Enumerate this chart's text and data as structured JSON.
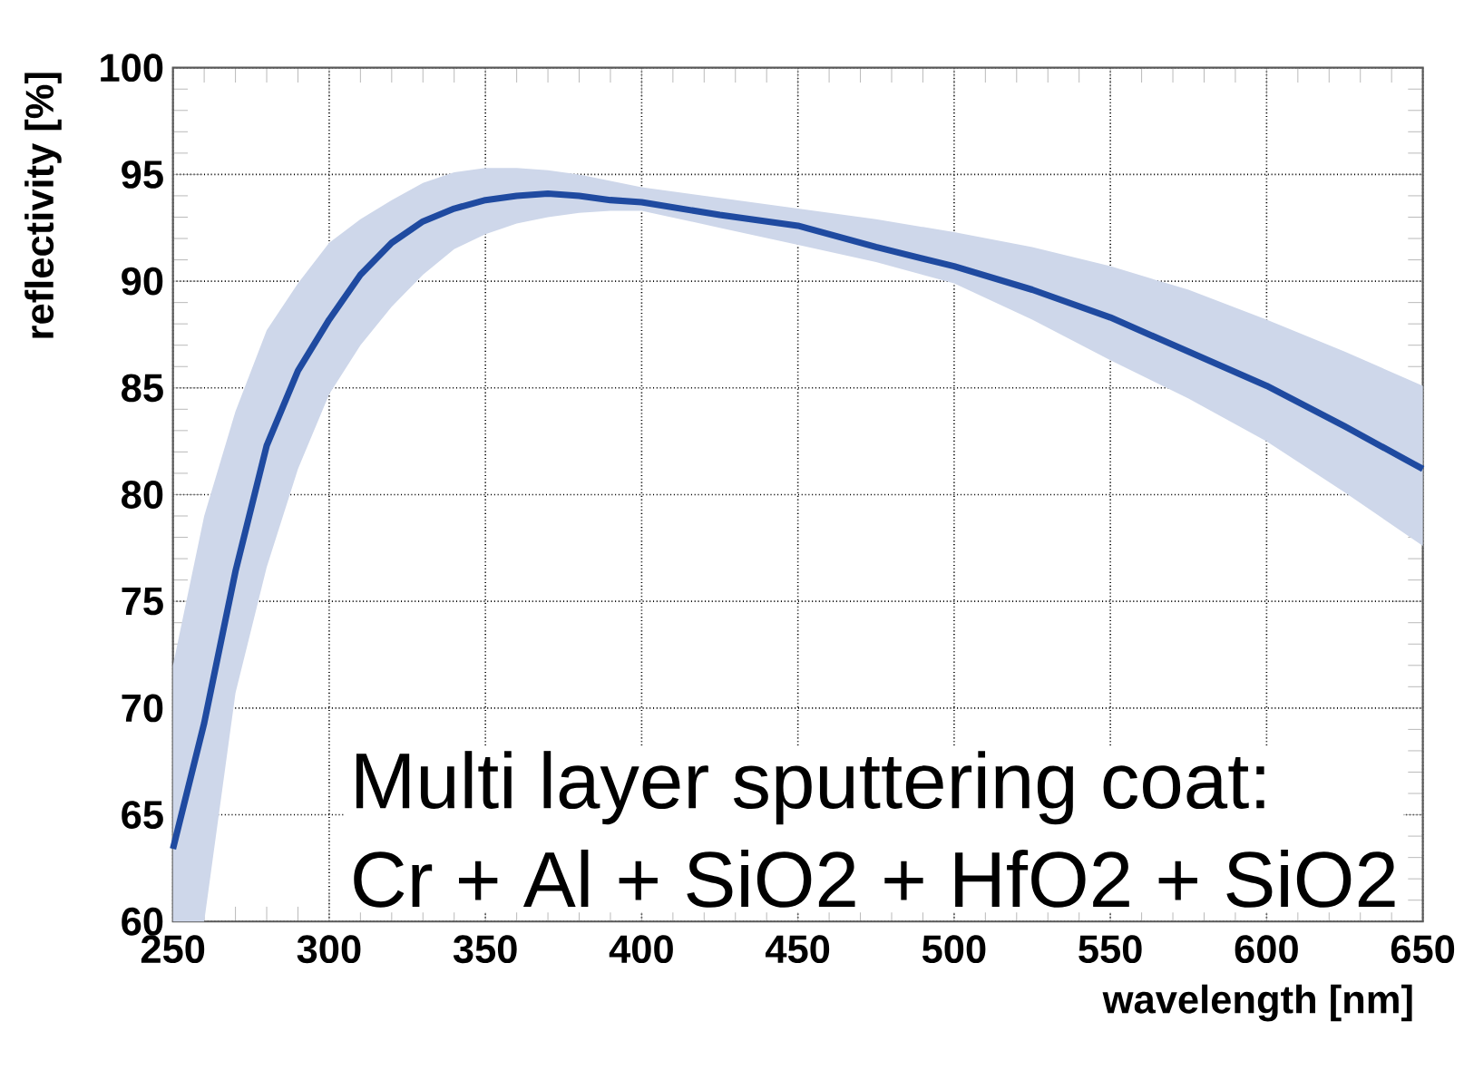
{
  "chart_data": {
    "type": "line",
    "xlabel": "wavelength [nm]",
    "ylabel": "reflectivity [%]",
    "x": [
      250,
      260,
      270,
      280,
      290,
      300,
      310,
      320,
      330,
      340,
      350,
      360,
      370,
      380,
      390,
      400,
      425,
      450,
      475,
      500,
      525,
      550,
      575,
      600,
      625,
      650
    ],
    "series": [
      {
        "color": "#1f4aa0",
        "values": [
          63.4,
          69.3,
          76.4,
          82.3,
          85.8,
          88.2,
          90.3,
          91.8,
          92.8,
          93.4,
          93.8,
          94.0,
          94.1,
          94.0,
          93.8,
          93.7,
          93.1,
          92.6,
          91.6,
          90.7,
          89.6,
          88.3,
          86.7,
          85.1,
          83.2,
          81.2
        ],
        "lower": [
          60,
          60,
          70.7,
          76.6,
          81.2,
          84.7,
          87.0,
          88.8,
          90.3,
          91.5,
          92.2,
          92.7,
          93.0,
          93.2,
          93.3,
          93.3,
          92.5,
          91.7,
          90.9,
          89.9,
          88.2,
          86.3,
          84.5,
          82.5,
          80.1,
          77.6
        ],
        "upper": [
          72,
          79,
          83.9,
          87.7,
          89.9,
          91.8,
          92.9,
          93.8,
          94.6,
          95.1,
          95.3,
          95.3,
          95.2,
          95.0,
          94.7,
          94.4,
          93.9,
          93.4,
          92.9,
          92.3,
          91.6,
          90.7,
          89.6,
          88.2,
          86.7,
          85.1
        ]
      }
    ],
    "xlim": [
      250,
      650
    ],
    "ylim": [
      60,
      100
    ],
    "xticks": [
      250,
      300,
      350,
      400,
      450,
      500,
      550,
      600,
      650
    ],
    "yticks": [
      60,
      65,
      70,
      75,
      80,
      85,
      90,
      95,
      100
    ],
    "grid": true,
    "annotations": [
      "Multi layer sputtering coat:",
      "Cr + Al + SiO2 + HfO2 + SiO2"
    ]
  }
}
